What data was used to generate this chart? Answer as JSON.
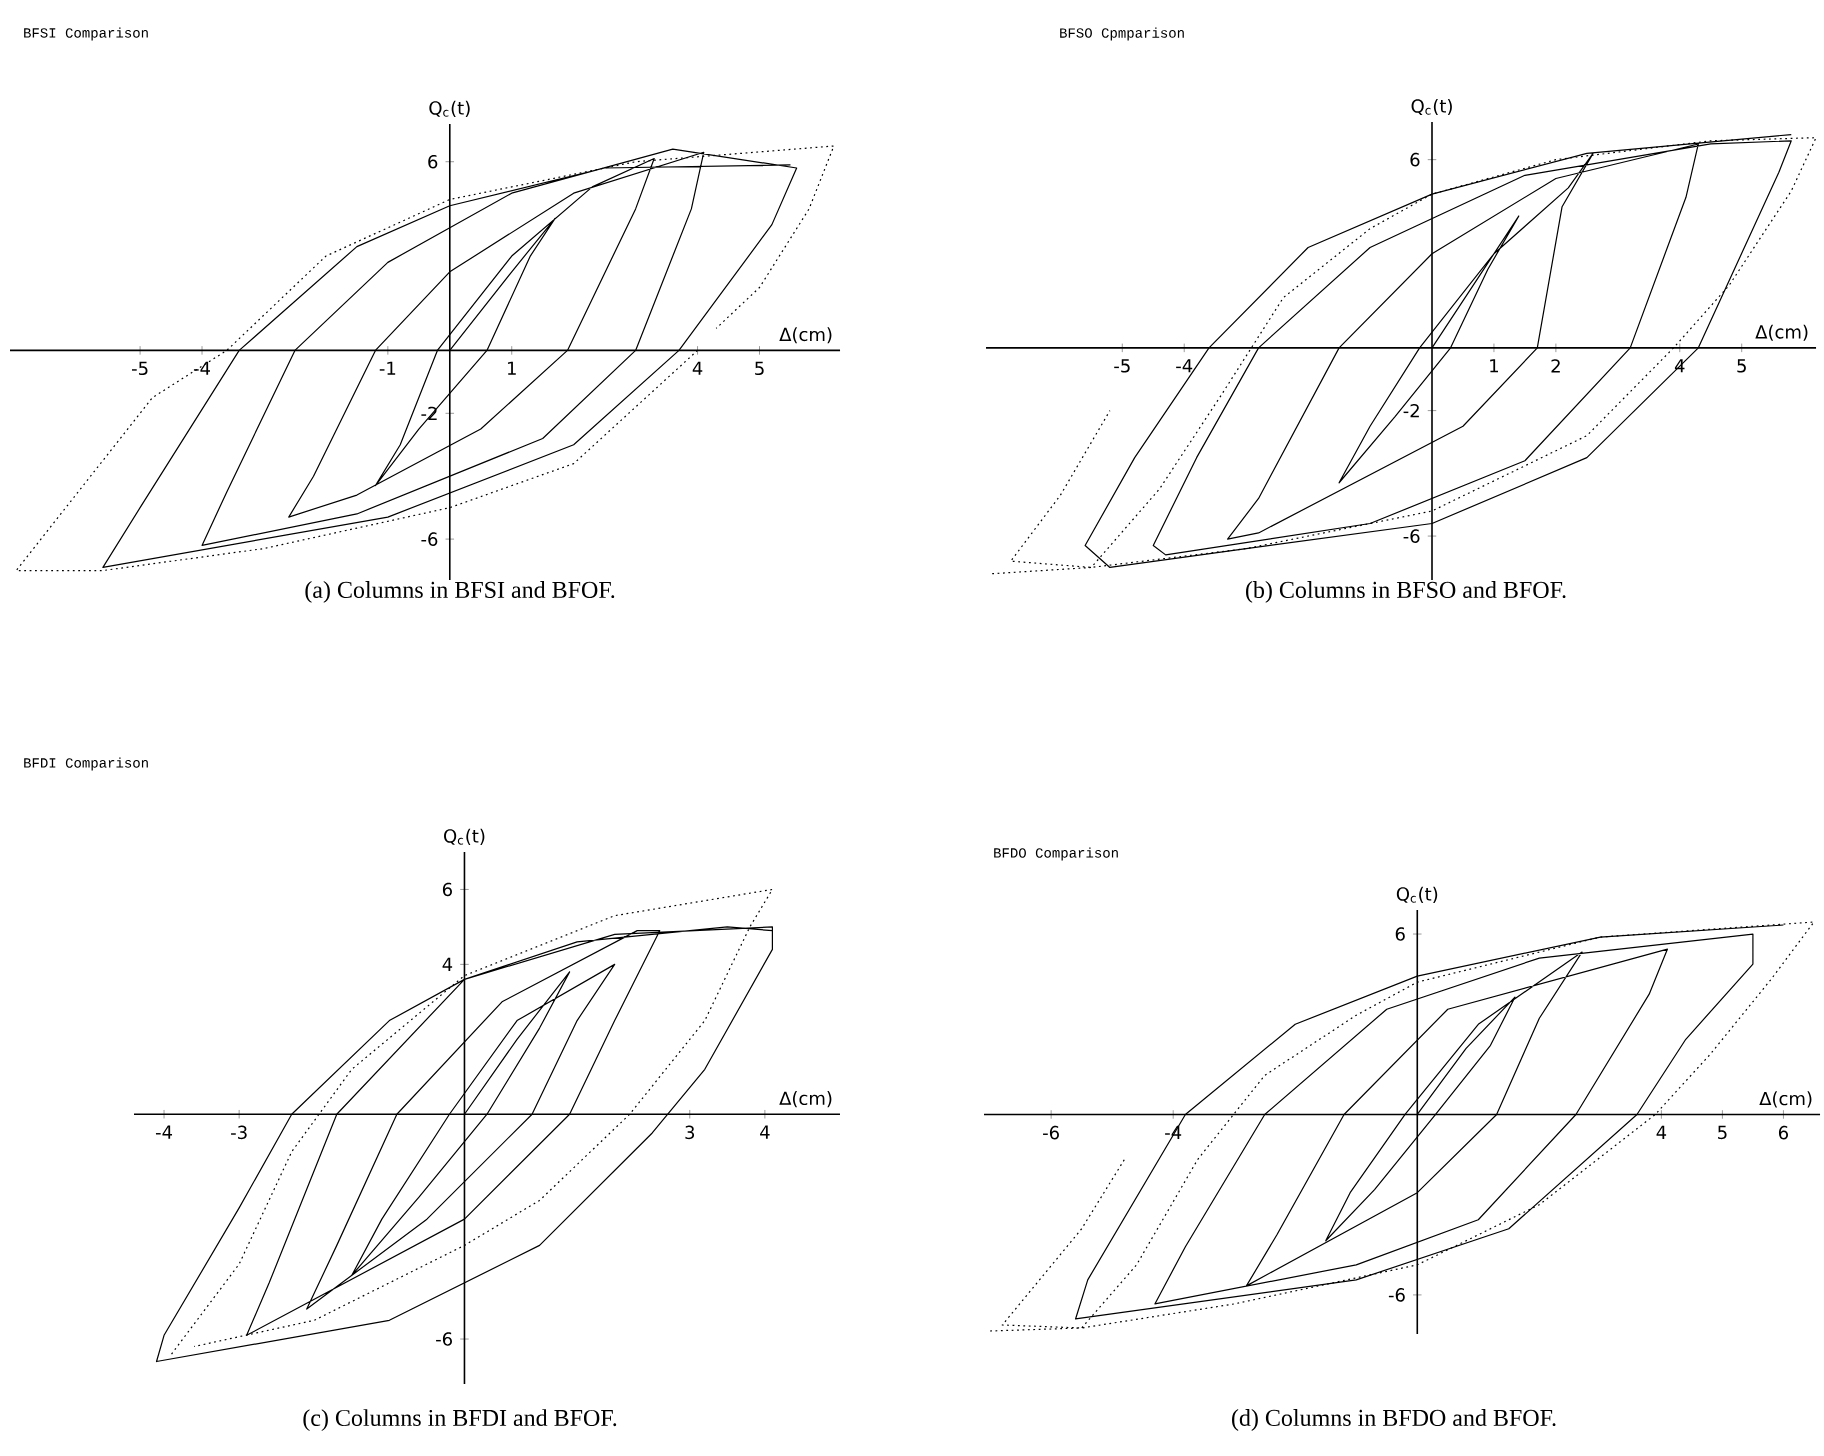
{
  "chart_data": [
    {
      "type": "line",
      "title": "BFSI Comparison",
      "xlabel": "Δ(cm)",
      "ylabel": "Q$_{c}$(t)",
      "annotations": [
        "(a)  Columns in BFSI and BFOF."
      ],
      "marker": "none",
      "grid": false,
      "xlim": [
        -7.1,
        6.3
      ],
      "ylim": [
        -7.3,
        7.2
      ],
      "xticks": [
        -5,
        -4,
        -1,
        1,
        4,
        5
      ],
      "yticks": [
        -6,
        -2,
        6
      ],
      "series": [
        {
          "color": "#000000",
          "line_style": "solid",
          "x": [
            0,
            1,
            1.7,
            1.3,
            0.6,
            -0.5,
            -1.2,
            -0.8,
            -0.2,
            1,
            2.3,
            3.3,
            3,
            1.9,
            0.5,
            -1.5,
            -2.6,
            -2.2,
            -1.2,
            0,
            2,
            4.1,
            3.9,
            3,
            1.5,
            -1.5,
            -4,
            -3.6,
            -2.5,
            -1,
            1,
            3.6,
            5.6,
            5.2,
            3.7,
            2,
            -1,
            -5.6,
            -5,
            -3.4,
            -1.5,
            0,
            2.5,
            5.5
          ],
          "values": [
            0,
            2.5,
            4.2,
            3,
            0,
            -2.5,
            -4.3,
            -3,
            0,
            3,
            5.2,
            6.1,
            4.5,
            0,
            -2.5,
            -4.6,
            -5.3,
            -4,
            0,
            2.5,
            5,
            6.3,
            4.5,
            0,
            -2.8,
            -5.2,
            -6.2,
            -4.5,
            0,
            2.8,
            5,
            6.4,
            5.8,
            4,
            0,
            -3,
            -5.3,
            -6.9,
            -5,
            0,
            3.3,
            4.6,
            5.8,
            5.9
          ]
        },
        {
          "color": "#000000",
          "line_style": "dotted",
          "x": [
            4,
            2,
            0,
            -3,
            -5.6,
            -7,
            -6,
            -4.8,
            -3.6,
            -2,
            0,
            3,
            6.2,
            5.8,
            5,
            4.3
          ],
          "values": [
            0,
            -3.6,
            -5,
            -6.3,
            -7,
            -7,
            -4.5,
            -1.5,
            0,
            3,
            4.8,
            6,
            6.5,
            4.5,
            2,
            0.7
          ]
        }
      ]
    },
    {
      "type": "line",
      "title": "BFSO Cpmparison",
      "xlabel": "Δ(cm)",
      "ylabel": "Q$_{c}$(t)",
      "annotations": [
        "(b)  Columns in BFSO and BFOF."
      ],
      "marker": "none",
      "grid": false,
      "xlim": [
        -7.2,
        6.2
      ],
      "ylim": [
        -7.4,
        7.2
      ],
      "xticks": [
        -5,
        -4,
        1,
        2,
        4,
        5
      ],
      "yticks": [
        -6,
        -2,
        6
      ],
      "series": [
        {
          "color": "#000000",
          "line_style": "solid",
          "x": [
            0,
            0.8,
            1.4,
            0.9,
            0.3,
            -0.6,
            -1.5,
            -1,
            -0.2,
            1,
            2.2,
            2.6,
            2.1,
            1.7,
            0.5,
            -2.8,
            -3.3,
            -2.8,
            -1.5,
            0,
            2,
            4.3,
            4.1,
            3.2,
            1.5,
            -1,
            -4.3,
            -4.5,
            -3.8,
            -2.8,
            -1,
            1.5,
            4.5,
            5.8,
            5.6,
            4.3,
            2.5,
            0,
            -3,
            -5.2,
            -5.6,
            -4.8,
            -3.6,
            -2,
            0,
            2.5,
            5.8
          ],
          "values": [
            0,
            2.4,
            4.2,
            2.5,
            0,
            -2.2,
            -4.3,
            -2.5,
            0,
            3,
            5.1,
            6.2,
            4.5,
            0,
            -2.5,
            -5.9,
            -6.1,
            -4.8,
            0,
            3,
            5.4,
            6.5,
            4.8,
            0,
            -3.6,
            -5.6,
            -6.6,
            -6.3,
            -3.5,
            0,
            3.2,
            5.5,
            6.5,
            6.6,
            5.6,
            0,
            -3.5,
            -5.6,
            -6.4,
            -7,
            -6.3,
            -3.5,
            0,
            3.2,
            4.9,
            6.2,
            6.8
          ]
        },
        {
          "color": "#000000",
          "line_style": "dotted",
          "x": [
            -7.1,
            -5.5,
            -4.4,
            -3.4,
            -2.4,
            -1,
            0,
            2,
            4.5,
            6.2,
            5.8,
            4.8,
            3.9,
            2.5,
            0,
            -3,
            -5.5,
            -6.8,
            -6,
            -5.2
          ],
          "values": [
            -7.2,
            -7,
            -4.5,
            -1.5,
            1.6,
            3.8,
            4.9,
            6,
            6.6,
            6.7,
            5,
            2,
            0,
            -2.8,
            -5.2,
            -6.4,
            -7,
            -6.8,
            -4.7,
            -2
          ]
        }
      ]
    },
    {
      "type": "line",
      "title": "BFDI Comparison",
      "xlabel": "Δ(cm)",
      "ylabel": "Q$_{c}$(t)",
      "annotations": [
        "(c)  Columns in BFDI and BFOF."
      ],
      "marker": "none",
      "grid": false,
      "xlim": [
        -4.4,
        5.0
      ],
      "ylim": [
        -7.2,
        7.0
      ],
      "xticks": [
        -4,
        -3,
        3,
        4
      ],
      "yticks": [
        -6,
        4,
        6
      ],
      "series": [
        {
          "color": "#000000",
          "line_style": "solid",
          "x": [
            0,
            0.7,
            1.4,
            1,
            0.3,
            -0.6,
            -1.5,
            -1.1,
            -0.2,
            0.7,
            2,
            1.5,
            0.9,
            -0.5,
            -2.1,
            -1.7,
            -0.9,
            0.5,
            2.3,
            2.6,
            2,
            1.4,
            0,
            -2.9,
            -2.6,
            -1.7,
            0,
            2,
            4.1,
            4.1,
            3.2,
            2.5,
            1,
            -1,
            -4.1,
            -4,
            -3,
            -2.3,
            -1,
            0,
            1.5,
            3.5,
            4.1
          ],
          "values": [
            0,
            2,
            3.8,
            2.3,
            0,
            -2.2,
            -4.3,
            -2.8,
            0,
            2.5,
            4,
            2.5,
            0,
            -2.8,
            -5.2,
            -3.5,
            0,
            3,
            4.9,
            4.9,
            2.5,
            0,
            -2.8,
            -5.9,
            -4.5,
            0,
            3.6,
            4.8,
            5,
            4.4,
            1.2,
            -0.5,
            -3.5,
            -5.5,
            -6.6,
            -5.9,
            -2.5,
            0,
            2.5,
            3.6,
            4.6,
            5,
            4.9
          ]
        },
        {
          "color": "#000000",
          "line_style": "dotted",
          "x": [
            -3.9,
            -3,
            -2.3,
            -1.5,
            0,
            2,
            4.1,
            3.8,
            3.2,
            2.2,
            1,
            0,
            -2,
            -3.6
          ],
          "values": [
            -6.4,
            -4,
            -1,
            1.2,
            3.7,
            5.3,
            6,
            5,
            2.5,
            0,
            -2.3,
            -3.5,
            -5.5,
            -6.2
          ]
        }
      ]
    },
    {
      "type": "line",
      "title": "BFDO  Comparison",
      "xlabel": "Δ(cm)",
      "ylabel": "Q$_{c}$(t)",
      "annotations": [
        "(d)  Columns in BFDO and BFOF."
      ],
      "marker": "none",
      "grid": false,
      "xlim": [
        -7.1,
        6.6
      ],
      "ylim": [
        -7.3,
        6.8
      ],
      "xticks": [
        -6,
        -4,
        4,
        5,
        6
      ],
      "yticks": [
        -6,
        6
      ],
      "series": [
        {
          "color": "#000000",
          "line_style": "solid",
          "x": [
            0,
            0.8,
            1.6,
            1.2,
            0.3,
            -0.7,
            -1.5,
            -1.1,
            -0.2,
            1,
            2.7,
            2,
            1.3,
            0,
            -2.8,
            -2.3,
            -1.2,
            0.5,
            4.1,
            3.8,
            2.6,
            1,
            -1,
            -4.3,
            -3.8,
            -2.5,
            -0.5,
            2,
            5.5,
            5.5,
            4.4,
            3.6,
            1.5,
            -1,
            -5.6,
            -5.4,
            -3.8,
            -2,
            0,
            3,
            6
          ],
          "values": [
            0,
            2.2,
            3.9,
            2.3,
            0,
            -2.5,
            -4.2,
            -2.6,
            0,
            3,
            5.4,
            3.2,
            0,
            -2.6,
            -5.7,
            -4,
            0,
            3.5,
            5.5,
            4,
            0,
            -3.5,
            -5,
            -6.3,
            -4.4,
            0,
            3.5,
            5.2,
            6,
            5,
            2.5,
            0,
            -3.8,
            -5.5,
            -6.8,
            -5.5,
            0,
            3,
            4.6,
            5.9,
            6.3
          ]
        },
        {
          "color": "#000000",
          "line_style": "dotted",
          "x": [
            -7,
            -5.5,
            -4.6,
            -3.6,
            -2.5,
            -1,
            0,
            3,
            6.5,
            5.8,
            4.8,
            3.9,
            2,
            0,
            -3,
            -5.5,
            -6.8,
            -5.5,
            -4.8
          ],
          "values": [
            -7.2,
            -7.1,
            -5,
            -1.5,
            1.3,
            3.3,
            4.4,
            5.9,
            6.4,
            4.5,
            2,
            0,
            -3,
            -5,
            -6.3,
            -7.1,
            -7,
            -3.8,
            -1.5
          ]
        }
      ]
    }
  ]
}
